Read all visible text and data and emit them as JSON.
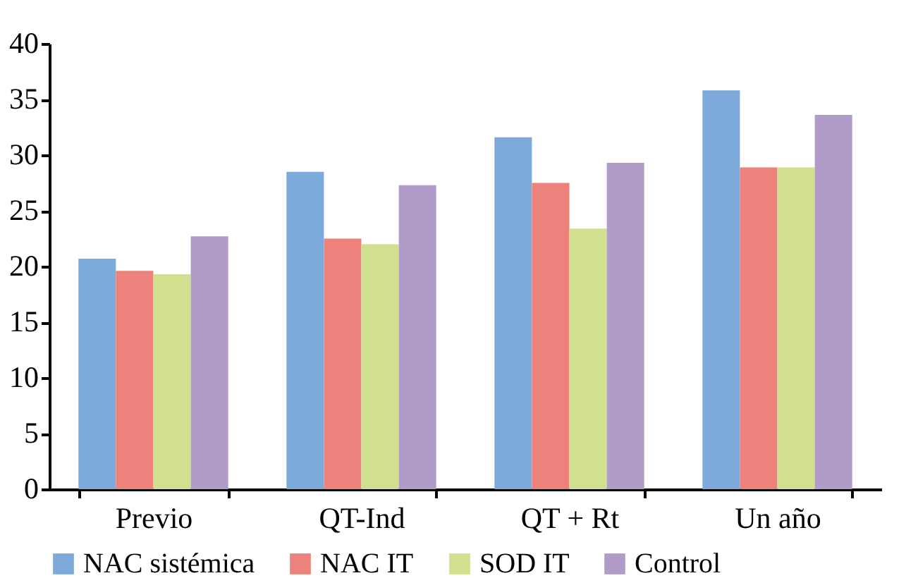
{
  "chart_data": {
    "type": "bar",
    "categories": [
      "Previo",
      "QT-Ind",
      "QT + Rt",
      "Un año"
    ],
    "series": [
      {
        "name": "NAC sistémica",
        "color": "#7eaadb",
        "values": [
          20.7,
          28.5,
          31.6,
          35.8
        ]
      },
      {
        "name": "NAC IT",
        "color": "#ec827b",
        "values": [
          19.6,
          22.5,
          27.5,
          28.9
        ]
      },
      {
        "name": "SOD IT",
        "color": "#d0e08f",
        "values": [
          19.3,
          22.0,
          23.4,
          28.9
        ]
      },
      {
        "name": "Control",
        "color": "#b19cc9",
        "values": [
          22.7,
          27.3,
          29.3,
          33.6
        ]
      }
    ],
    "ylim": [
      0,
      40
    ],
    "yticks": [
      0,
      5,
      10,
      15,
      20,
      25,
      30,
      35,
      40
    ],
    "grid": false,
    "legend": "bottom"
  }
}
